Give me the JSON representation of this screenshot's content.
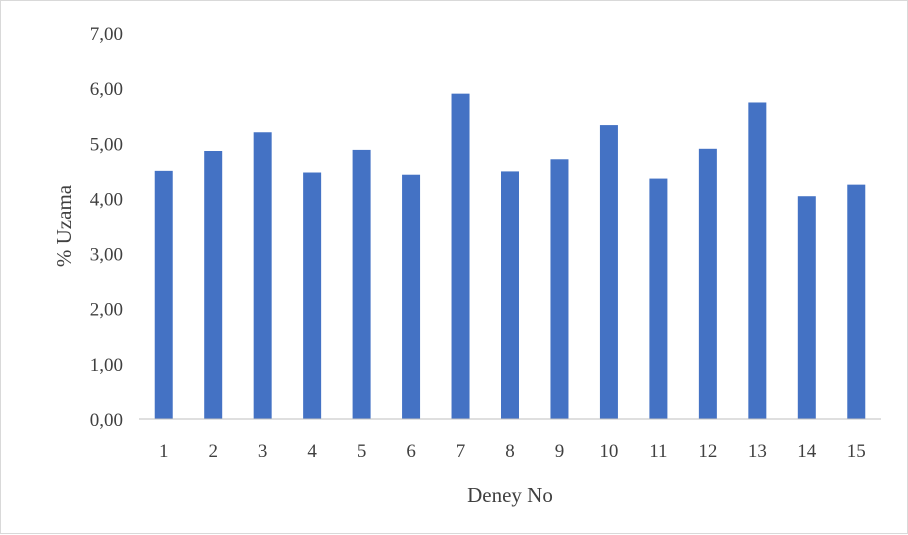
{
  "colors": {
    "bar": "#4472C4",
    "axis": "#bfbfbf",
    "text": "#404040",
    "frame": "#d9d9d9"
  },
  "chart_data": {
    "type": "bar",
    "title": "",
    "xlabel": "Deney No",
    "ylabel": "% Uzama",
    "categories": [
      "1",
      "2",
      "3",
      "4",
      "5",
      "6",
      "7",
      "8",
      "9",
      "10",
      "11",
      "12",
      "13",
      "14",
      "15"
    ],
    "values": [
      4.5,
      4.86,
      5.2,
      4.47,
      4.88,
      4.43,
      5.9,
      4.49,
      4.71,
      5.33,
      4.36,
      4.9,
      5.74,
      4.04,
      4.25
    ],
    "ylim": [
      0,
      7
    ],
    "yticks": [
      "0,00",
      "1,00",
      "2,00",
      "3,00",
      "4,00",
      "5,00",
      "6,00",
      "7,00"
    ],
    "grid": false,
    "legend": "none"
  }
}
